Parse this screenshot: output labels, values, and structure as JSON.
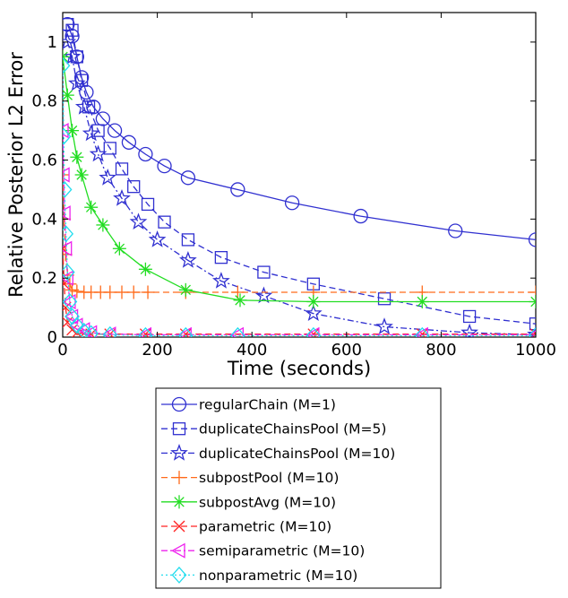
{
  "chart_data": {
    "type": "line",
    "title": "",
    "xlabel": "Time (seconds)",
    "ylabel": "Relative Posterior L2 Error",
    "xlim": [
      0,
      1000
    ],
    "ylim": [
      0,
      1.1
    ],
    "xticks": [
      "0",
      "200",
      "400",
      "600",
      "800",
      "1000"
    ],
    "yticks": [
      "0",
      "0.2",
      "0.4",
      "0.6",
      "0.8",
      "1"
    ],
    "grid": false,
    "legend_placement": "bottom, below axes",
    "series": [
      {
        "name": "regularChain (M=1)",
        "color": "#3030d0",
        "line": "solid",
        "marker": "circle",
        "x": [
          10,
          20,
          30,
          40,
          50,
          65,
          85,
          110,
          140,
          175,
          215,
          265,
          370,
          485,
          630,
          830,
          1000
        ],
        "y": [
          1.06,
          1.02,
          0.95,
          0.88,
          0.83,
          0.78,
          0.74,
          0.7,
          0.66,
          0.62,
          0.58,
          0.54,
          0.5,
          0.455,
          0.41,
          0.36,
          0.33
        ]
      },
      {
        "name": "duplicateChainsPool (M=5)",
        "color": "#3030d0",
        "line": "dashed",
        "marker": "square",
        "x": [
          10,
          20,
          30,
          40,
          55,
          75,
          100,
          125,
          150,
          180,
          215,
          265,
          335,
          425,
          530,
          680,
          860,
          1000
        ],
        "y": [
          1.06,
          1.04,
          0.95,
          0.87,
          0.78,
          0.7,
          0.64,
          0.57,
          0.51,
          0.45,
          0.39,
          0.33,
          0.27,
          0.22,
          0.18,
          0.13,
          0.07,
          0.045
        ]
      },
      {
        "name": "duplicateChainsPool (M=10)",
        "color": "#3030d0",
        "line": "dashdot",
        "marker": "star",
        "x": [
          10,
          20,
          30,
          45,
          60,
          75,
          95,
          125,
          160,
          200,
          265,
          335,
          425,
          530,
          680,
          860,
          1000
        ],
        "y": [
          1.0,
          0.95,
          0.86,
          0.78,
          0.69,
          0.62,
          0.54,
          0.47,
          0.39,
          0.33,
          0.26,
          0.19,
          0.14,
          0.08,
          0.035,
          0.015,
          0.008
        ]
      },
      {
        "name": "subpostPool (M=10)",
        "color": "#ff6a1a",
        "line": "dashed",
        "marker": "plus",
        "x": [
          0,
          3,
          6,
          10,
          15,
          20,
          30,
          45,
          60,
          80,
          100,
          125,
          150,
          180,
          260,
          370,
          530,
          760,
          1000
        ],
        "y": [
          0.55,
          0.4,
          0.28,
          0.21,
          0.18,
          0.16,
          0.155,
          0.152,
          0.152,
          0.152,
          0.152,
          0.152,
          0.152,
          0.152,
          0.152,
          0.152,
          0.152,
          0.152,
          0.152
        ]
      },
      {
        "name": "subpostAvg (M=10)",
        "color": "#22dd22",
        "line": "solid",
        "marker": "asterisk",
        "x": [
          0,
          10,
          20,
          30,
          40,
          60,
          85,
          120,
          175,
          260,
          375,
          530,
          760,
          1000
        ],
        "y": [
          0.95,
          0.82,
          0.7,
          0.61,
          0.55,
          0.44,
          0.38,
          0.3,
          0.23,
          0.16,
          0.125,
          0.12,
          0.12,
          0.12
        ]
      },
      {
        "name": "parametric (M=10)",
        "color": "#ff2222",
        "line": "dashed",
        "marker": "x",
        "x": [
          0,
          3,
          6,
          10,
          20,
          30,
          45,
          60,
          100,
          175,
          260,
          530,
          760,
          1000
        ],
        "y": [
          0.3,
          0.18,
          0.1,
          0.05,
          0.025,
          0.015,
          0.012,
          0.01,
          0.01,
          0.01,
          0.01,
          0.01,
          0.01,
          0.01
        ]
      },
      {
        "name": "semiparametric (M=10)",
        "color": "#ee22ee",
        "line": "dashdot",
        "marker": "triangle-left",
        "x": [
          0,
          2,
          4,
          7,
          10,
          15,
          20,
          30,
          45,
          60,
          100,
          175,
          260,
          370,
          530,
          760,
          1000
        ],
        "y": [
          0.7,
          0.55,
          0.42,
          0.3,
          0.2,
          0.12,
          0.07,
          0.04,
          0.025,
          0.015,
          0.01,
          0.008,
          0.008,
          0.008,
          0.008,
          0.008,
          0.008
        ]
      },
      {
        "name": "nonparametric (M=10)",
        "color": "#22ddee",
        "line": "dotted",
        "marker": "diamond",
        "x": [
          0,
          2,
          4,
          7,
          10,
          15,
          20,
          30,
          45,
          60,
          100,
          175,
          260,
          370,
          530,
          760,
          1000
        ],
        "y": [
          0.92,
          0.68,
          0.5,
          0.35,
          0.22,
          0.12,
          0.07,
          0.04,
          0.02,
          0.012,
          0.008,
          0.005,
          0.005,
          0.005,
          0.005,
          0.005,
          0.005
        ]
      }
    ]
  }
}
